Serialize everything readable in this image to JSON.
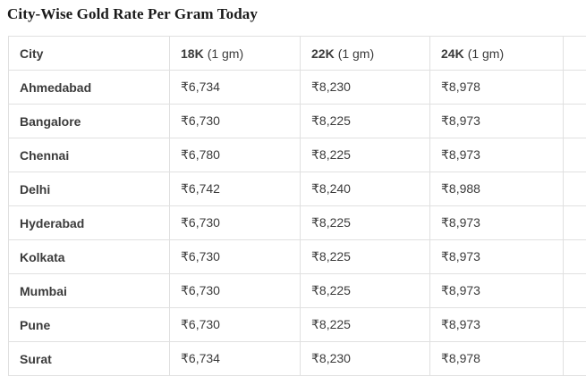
{
  "page": {
    "title": "City-Wise Gold Rate Per Gram Today"
  },
  "colors": {
    "background": "#ffffff",
    "title_text": "#1a1a1a",
    "cell_text": "#3b3b3b",
    "table_border": "#e0e0e0"
  },
  "table": {
    "columns": [
      {
        "label": "City",
        "sub": ""
      },
      {
        "label": "18K",
        "sub": "(1 gm)"
      },
      {
        "label": "22K",
        "sub": "(1 gm)"
      },
      {
        "label": "24K",
        "sub": "(1 gm)"
      }
    ],
    "rows": [
      {
        "city": "Ahmedabad",
        "k18": "₹6,734",
        "k22": "₹8,230",
        "k24": "₹8,978"
      },
      {
        "city": "Bangalore",
        "k18": "₹6,730",
        "k22": "₹8,225",
        "k24": "₹8,973"
      },
      {
        "city": "Chennai",
        "k18": "₹6,780",
        "k22": "₹8,225",
        "k24": "₹8,973"
      },
      {
        "city": "Delhi",
        "k18": "₹6,742",
        "k22": "₹8,240",
        "k24": "₹8,988"
      },
      {
        "city": "Hyderabad",
        "k18": "₹6,730",
        "k22": "₹8,225",
        "k24": "₹8,973"
      },
      {
        "city": "Kolkata",
        "k18": "₹6,730",
        "k22": "₹8,225",
        "k24": "₹8,973"
      },
      {
        "city": "Mumbai",
        "k18": "₹6,730",
        "k22": "₹8,225",
        "k24": "₹8,973"
      },
      {
        "city": "Pune",
        "k18": "₹6,730",
        "k22": "₹8,225",
        "k24": "₹8,973"
      },
      {
        "city": "Surat",
        "k18": "₹6,734",
        "k22": "₹8,230",
        "k24": "₹8,978"
      }
    ]
  }
}
